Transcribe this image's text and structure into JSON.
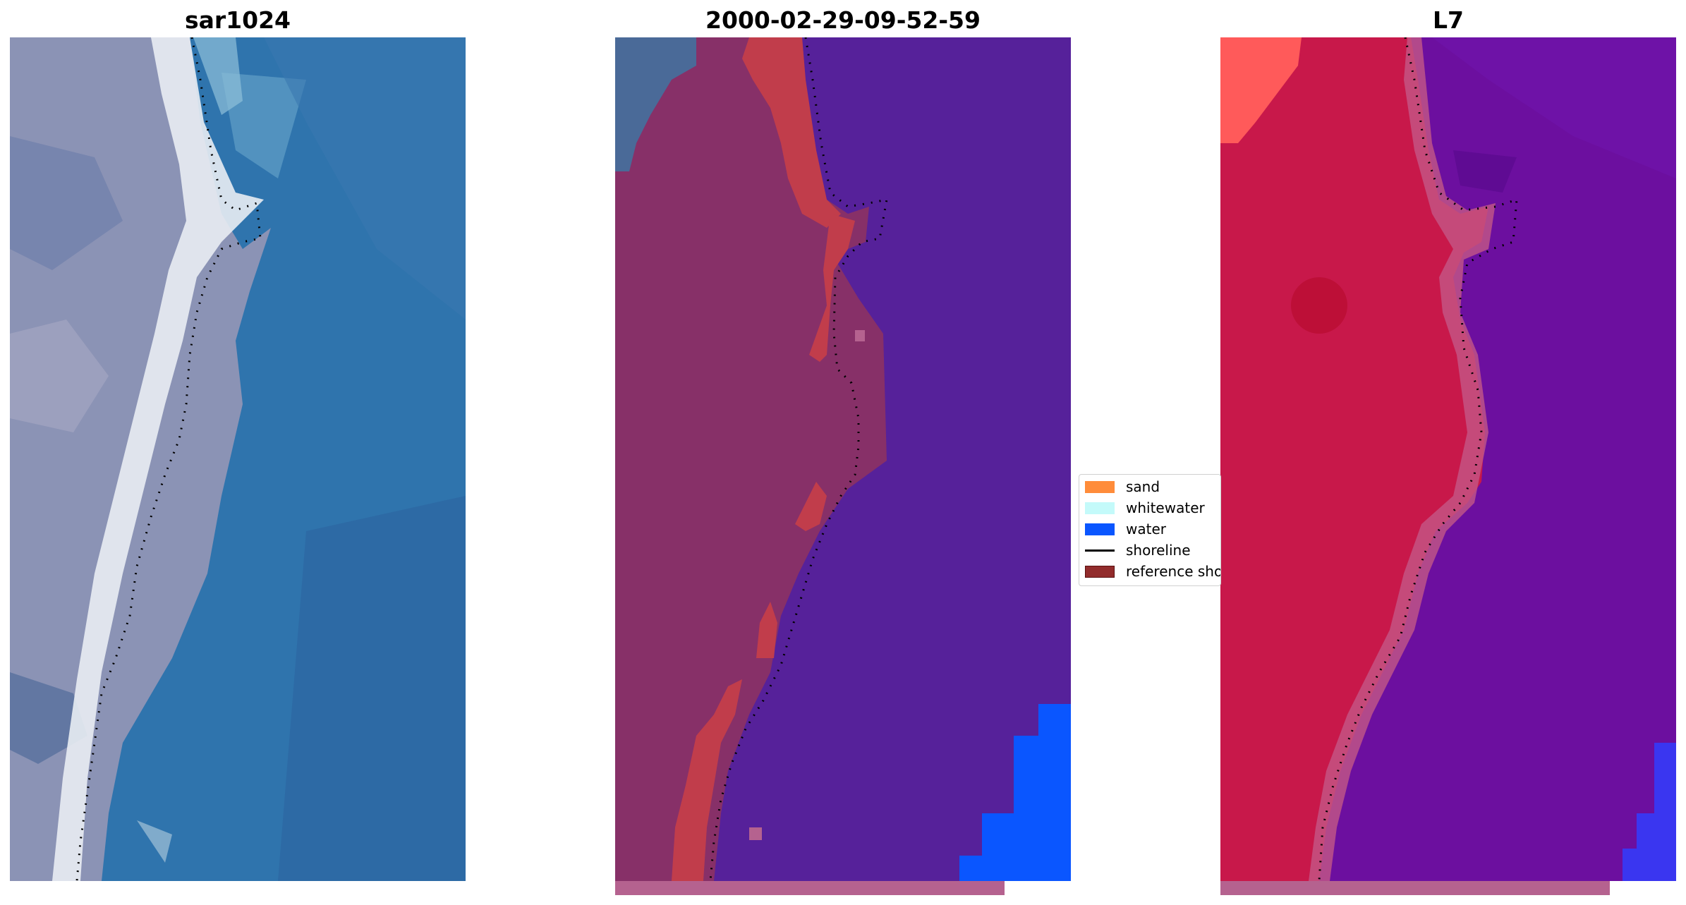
{
  "panels": [
    {
      "title": "sar1024"
    },
    {
      "title": "2000-02-29-09-52-59"
    },
    {
      "title": "L7"
    }
  ],
  "legend": {
    "items": [
      {
        "label": "sand",
        "color": "#ff8c3a"
      },
      {
        "label": "whitewater",
        "color": "#c4fafa"
      },
      {
        "label": "water",
        "color": "#0a56ff"
      },
      {
        "label": "shoreline",
        "color": "#000000"
      },
      {
        "label": "reference shoreline",
        "color": "#922c2c"
      }
    ]
  },
  "colors": {
    "sar_water": "#2f74ad",
    "sar_land": "#8b93b5",
    "sar_beach": "#e9edf3",
    "class_water": "#56219a",
    "class_land": "#873068",
    "class_sand_edge": "#c13d4b",
    "class_water_pixel": "#0a56ff",
    "index_land": "#c8184a",
    "index_water": "#6c0f9f",
    "strip": "#b5628f"
  }
}
